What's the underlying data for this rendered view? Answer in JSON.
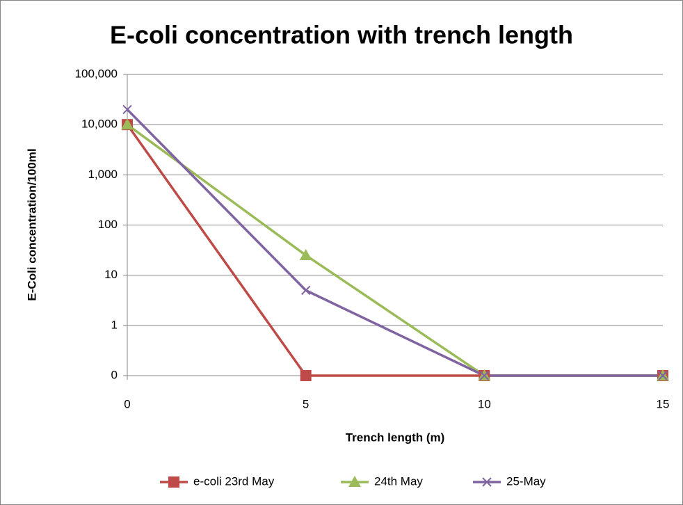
{
  "chart_data": {
    "type": "line",
    "title": "E-coli concentration with trench length",
    "x_label": "Trench length (m)",
    "y_label": "E-Coli concentration/100ml",
    "x": [
      0,
      5,
      10,
      15
    ],
    "xlim": [
      0,
      15
    ],
    "xticks": [
      0,
      5,
      10,
      15
    ],
    "ylim": [
      0.1,
      100000
    ],
    "yticks": [
      {
        "value": 0.1,
        "label": "0"
      },
      1,
      10,
      100,
      {
        "value": 1000,
        "label": "1,000"
      },
      {
        "value": 10000,
        "label": "10,000"
      },
      {
        "value": 100000,
        "label": "100,000"
      }
    ],
    "log_scale": true,
    "grid": true,
    "legend": "bottom",
    "series": [
      {
        "name": "e-coli 23rd May",
        "color": "#be4b48",
        "marker": "square",
        "values": [
          10000,
          0.1,
          0.1,
          0.1
        ]
      },
      {
        "name": "24th May",
        "color": "#9bbb59",
        "marker": "triangle",
        "values": [
          10000,
          25,
          0.1,
          0.1
        ]
      },
      {
        "name": "25-May",
        "color": "#8064a2",
        "marker": "x",
        "values": [
          20000,
          5,
          0.1,
          0.1
        ]
      }
    ]
  }
}
